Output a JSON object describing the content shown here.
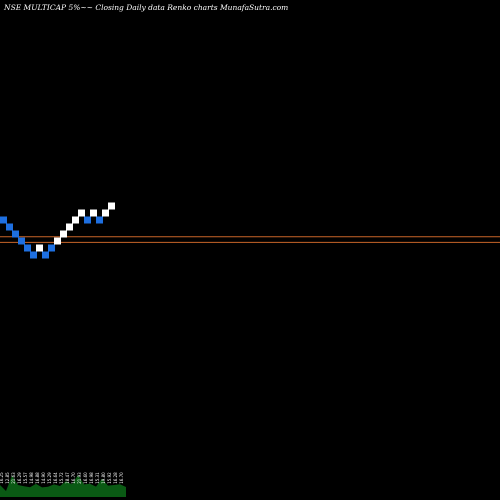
{
  "title": "NSE MULTICAP 5%~~  Closing Daily data  Renko  charts MunafaSutra.com",
  "colors": {
    "background": "#000000",
    "up_brick": "#ffffff",
    "down_brick": "#1e6fe0",
    "hline": "#c86428",
    "volume": "#0a5a14"
  },
  "chart_data": {
    "type": "renko",
    "bricks": [
      {
        "dir": "down",
        "level": 10
      },
      {
        "dir": "down",
        "level": 9
      },
      {
        "dir": "down",
        "level": 8
      },
      {
        "dir": "down",
        "level": 7
      },
      {
        "dir": "down",
        "level": 6
      },
      {
        "dir": "down",
        "level": 5
      },
      {
        "dir": "up",
        "level": 6
      },
      {
        "dir": "down",
        "level": 5
      },
      {
        "dir": "down",
        "level": 6
      },
      {
        "dir": "up",
        "level": 7
      },
      {
        "dir": "up",
        "level": 8
      },
      {
        "dir": "up",
        "level": 9
      },
      {
        "dir": "up",
        "level": 10
      },
      {
        "dir": "up",
        "level": 11
      },
      {
        "dir": "down",
        "level": 10
      },
      {
        "dir": "up",
        "level": 11
      },
      {
        "dir": "down",
        "level": 10
      },
      {
        "dir": "up",
        "level": 11
      },
      {
        "dir": "up",
        "level": 12
      }
    ],
    "hlines": [
      7.6,
      6.8
    ],
    "volume_labels": [
      "16.25",
      "12.85",
      "21.63",
      "16.29",
      "15.57",
      "14.98",
      "16.88",
      "14.90",
      "15.29",
      "16.64",
      "15.72",
      "18.47",
      "16.70",
      "21.93",
      "16.60",
      "16.98",
      "15.31",
      "19.80",
      "15.92",
      "16.28",
      "16.70"
    ]
  }
}
